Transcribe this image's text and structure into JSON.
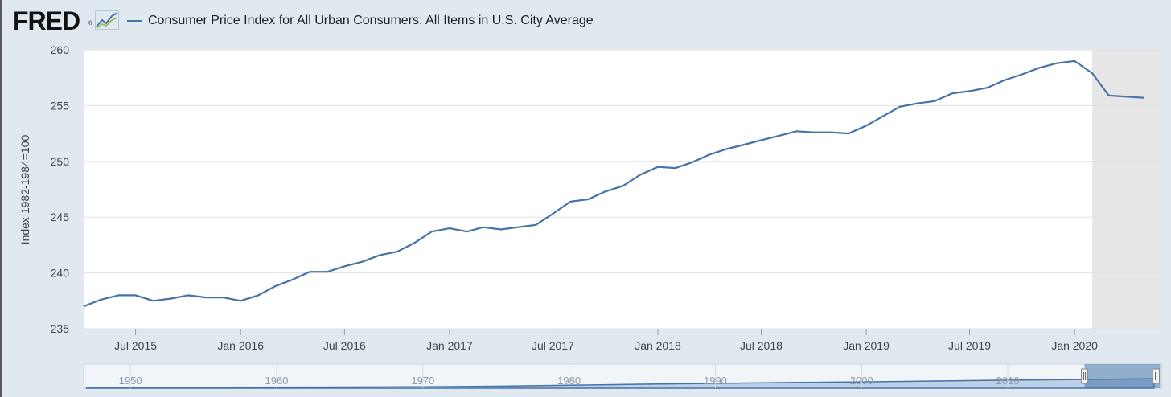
{
  "header": {
    "logo_text": "FRED",
    "logo_registered": "®",
    "logo_icon": "trend-graph-icon"
  },
  "colors": {
    "background": "#e1e9f0",
    "plot_bg": "#ffffff",
    "series": "#4572a7",
    "recession_shade": "#e6e6e6",
    "grid": "#e0e0e0"
  },
  "chart_data": {
    "type": "line",
    "title": "",
    "legend": [
      "Consumer Price Index for All Urban Consumers: All Items in U.S. City Average"
    ],
    "ylabel": "Index 1982-1984=100",
    "xlabel": "",
    "ylim": [
      235,
      260
    ],
    "yticks": [
      235,
      240,
      245,
      250,
      255,
      260
    ],
    "xlim": [
      "2015-04-01",
      "2020-06-01"
    ],
    "xtick_labels": [
      "Jul 2015",
      "Jan 2016",
      "Jul 2016",
      "Jan 2017",
      "Jul 2017",
      "Jan 2018",
      "Jul 2018",
      "Jan 2019",
      "Jul 2019",
      "Jan 2020"
    ],
    "xtick_dates": [
      "2015-07-01",
      "2016-01-01",
      "2016-07-01",
      "2017-01-01",
      "2017-07-01",
      "2018-01-01",
      "2018-07-01",
      "2019-01-01",
      "2019-07-01",
      "2020-01-01"
    ],
    "grid": true,
    "recession_shading": {
      "start": "2020-02-01",
      "end": "2020-06-01"
    },
    "series": [
      {
        "name": "Consumer Price Index for All Urban Consumers: All Items in U.S. City Average",
        "x": [
          "2015-04-01",
          "2015-05-01",
          "2015-06-01",
          "2015-07-01",
          "2015-08-01",
          "2015-09-01",
          "2015-10-01",
          "2015-11-01",
          "2015-12-01",
          "2016-01-01",
          "2016-02-01",
          "2016-03-01",
          "2016-04-01",
          "2016-05-01",
          "2016-06-01",
          "2016-07-01",
          "2016-08-01",
          "2016-09-01",
          "2016-10-01",
          "2016-11-01",
          "2016-12-01",
          "2017-01-01",
          "2017-02-01",
          "2017-03-01",
          "2017-04-01",
          "2017-05-01",
          "2017-06-01",
          "2017-07-01",
          "2017-08-01",
          "2017-09-01",
          "2017-10-01",
          "2017-11-01",
          "2017-12-01",
          "2018-01-01",
          "2018-02-01",
          "2018-03-01",
          "2018-04-01",
          "2018-05-01",
          "2018-06-01",
          "2018-07-01",
          "2018-08-01",
          "2018-09-01",
          "2018-10-01",
          "2018-11-01",
          "2018-12-01",
          "2019-01-01",
          "2019-02-01",
          "2019-03-01",
          "2019-04-01",
          "2019-05-01",
          "2019-06-01",
          "2019-07-01",
          "2019-08-01",
          "2019-09-01",
          "2019-10-01",
          "2019-11-01",
          "2019-12-01",
          "2020-01-01",
          "2020-02-01",
          "2020-03-01",
          "2020-04-01",
          "2020-05-01"
        ],
        "y": [
          237.0,
          237.6,
          238.0,
          238.0,
          237.5,
          237.7,
          238.0,
          237.8,
          237.8,
          237.5,
          238.0,
          238.8,
          239.4,
          240.1,
          240.1,
          240.6,
          241.0,
          241.6,
          241.9,
          242.7,
          243.7,
          244.0,
          243.7,
          244.1,
          243.9,
          244.1,
          244.3,
          245.3,
          246.4,
          246.6,
          247.3,
          247.8,
          248.8,
          249.5,
          249.4,
          249.9,
          250.6,
          251.1,
          251.5,
          251.9,
          252.3,
          252.7,
          252.6,
          252.6,
          252.5,
          253.2,
          254.1,
          254.9,
          255.2,
          255.4,
          256.1,
          256.3,
          256.6,
          257.3,
          257.8,
          258.4,
          258.8,
          259.0,
          257.9,
          255.9,
          255.8,
          255.7
        ]
      }
    ]
  },
  "navigator": {
    "ticks": [
      "1950",
      "1960",
      "1970",
      "1980",
      "1990",
      "2000",
      "2010"
    ],
    "tick_years": [
      1950,
      1960,
      1970,
      1980,
      1990,
      2000,
      2010
    ],
    "range_years": [
      1946.8,
      2020.5
    ],
    "selected_range": [
      "2015-04-01",
      "2020-06-01"
    ],
    "profile_years": [
      1947,
      1955,
      1965,
      1970,
      1975,
      1980,
      1985,
      1990,
      1995,
      2000,
      2005,
      2010,
      2015,
      2020
    ],
    "profile_values": [
      22,
      27,
      32,
      39,
      54,
      83,
      108,
      131,
      153,
      172,
      195,
      218,
      237,
      258
    ],
    "profile_ylim": [
      0,
      260
    ]
  }
}
